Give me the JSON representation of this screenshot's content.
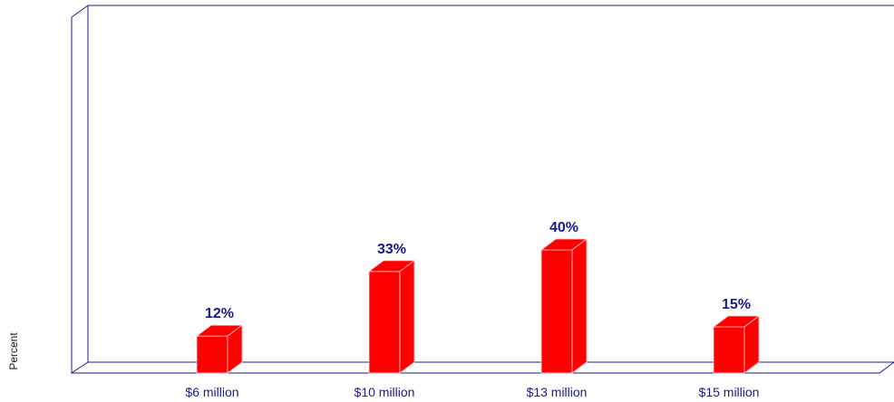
{
  "chart_data": {
    "type": "bar",
    "categories": [
      "$6 million",
      "$10 million",
      "$13 million",
      "$15 million"
    ],
    "values": [
      12,
      33,
      40,
      15
    ],
    "data_labels": [
      "12%",
      "33%",
      "40%",
      "15%"
    ],
    "title": "",
    "xlabel": "",
    "ylabel": "Percent",
    "ylim": [
      0,
      100
    ],
    "grid": false,
    "legend": "none",
    "bar_color": "#ff0000",
    "frame_color": "#1a1a8c",
    "label_color": "#1a1a8c"
  }
}
